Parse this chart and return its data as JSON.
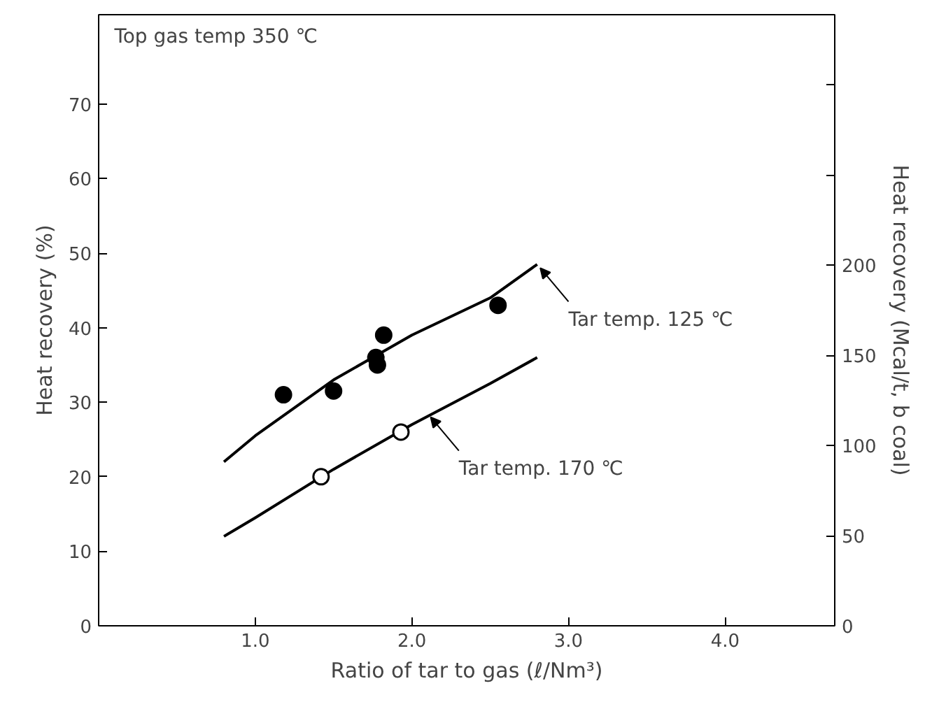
{
  "chart_data": {
    "type": "line",
    "xlabel": "Ratio of tar to gas (ℓ/Nm³)",
    "ylabel": "Heat recovery (%)",
    "y2label": "Heat recovery (Mcal/t, b coal)",
    "xlim": [
      0,
      4.7
    ],
    "xticks": [
      {
        "value": 1.0,
        "label": "1.0"
      },
      {
        "value": 2.0,
        "label": "2.0"
      },
      {
        "value": 3.0,
        "label": "3.0"
      },
      {
        "value": 4.0,
        "label": "4.0"
      }
    ],
    "ylim": [
      0,
      82
    ],
    "yticks": [
      0,
      10,
      20,
      30,
      40,
      50,
      60,
      70
    ],
    "y2lim": [
      0,
      339
    ],
    "y2ticks": [
      0,
      50,
      100,
      150,
      200,
      {
        "value": 250,
        "label": null
      },
      {
        "value": 300,
        "label": null
      }
    ],
    "grid": false,
    "series": [
      {
        "color": "#000000",
        "x": [
          0.8,
          1.0,
          1.5,
          2.0,
          2.5,
          2.8
        ],
        "values": [
          22,
          25.5,
          33,
          39,
          44,
          48.5
        ]
      },
      {
        "color": "#000000",
        "x": [
          0.8,
          1.0,
          1.5,
          2.0,
          2.5,
          2.8
        ],
        "values": [
          12,
          14.5,
          21,
          27,
          32.5,
          36
        ]
      },
      {
        "type": "scatter",
        "marker": "circle",
        "color": "#000000",
        "x": [
          1.18,
          1.5,
          1.77,
          1.78,
          1.82,
          2.55
        ],
        "values": [
          31,
          31.5,
          36,
          35,
          39,
          43
        ]
      },
      {
        "type": "scatter",
        "marker": "circle",
        "color": "#ffffff",
        "x": [
          1.42,
          1.93
        ],
        "values": [
          20,
          26
        ]
      }
    ],
    "annotations": [
      "Top gas temp 350 ℃",
      {
        "text": "Tar temp. 125 ℃",
        "x": 2.8,
        "y": 48.5
      },
      {
        "text": "Tar temp. 170 ℃",
        "x": 2.1,
        "y": 28.5
      }
    ]
  }
}
